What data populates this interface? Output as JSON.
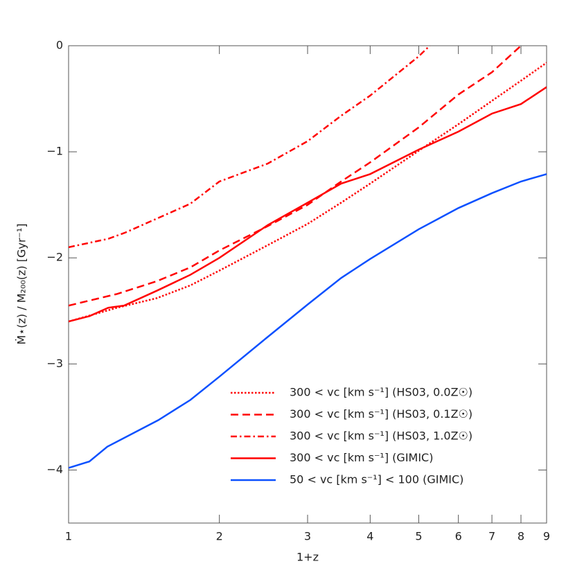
{
  "chart_data": {
    "type": "line",
    "xlabel": "1+z",
    "ylabel": "Ṁ⋆(z) / M₂₀₀(z) [Gyr⁻¹]",
    "xscale": "log",
    "xlim": [
      1,
      9
    ],
    "xticks": [
      1,
      2,
      3,
      4,
      5,
      6,
      7,
      8,
      9
    ],
    "ylim": [
      -4.5,
      0
    ],
    "yticks": [
      {
        "value": -4,
        "label": "−4"
      },
      {
        "value": -3,
        "label": "−3"
      },
      {
        "value": -2,
        "label": "−2"
      },
      {
        "value": -1,
        "label": "−1"
      },
      0
    ],
    "legend": "lower right",
    "series": [
      {
        "name": "300 < vc [km s⁻¹] (HS03, 0.0Z☉)",
        "color": "#ff0000",
        "style": "dotted",
        "x": [
          1,
          1.25,
          1.5,
          1.75,
          2,
          2.5,
          3,
          3.5,
          4,
          5,
          6,
          7,
          8,
          9
        ],
        "values": [
          -2.6,
          -2.47,
          -2.38,
          -2.26,
          -2.12,
          -1.88,
          -1.68,
          -1.48,
          -1.3,
          -0.99,
          -0.74,
          -0.52,
          -0.33,
          -0.16
        ]
      },
      {
        "name": "300 < vc [km s⁻¹] (HS03, 0.1Z☉)",
        "color": "#ff0000",
        "style": "dashed",
        "x": [
          1,
          1.25,
          1.5,
          1.75,
          2,
          2.5,
          3,
          3.5,
          4,
          5,
          6,
          7,
          8
        ],
        "values": [
          -2.45,
          -2.34,
          -2.22,
          -2.09,
          -1.93,
          -1.7,
          -1.5,
          -1.28,
          -1.1,
          -0.77,
          -0.46,
          -0.25,
          0.0
        ]
      },
      {
        "name": "300 < vc [km s⁻¹] (HS03, 1.0Z☉)",
        "color": "#ff0000",
        "style": "dashdot",
        "x": [
          1,
          1.2,
          1.3,
          1.75,
          2,
          2.5,
          3,
          3.5,
          4,
          5,
          5.26
        ],
        "values": [
          -1.9,
          -1.82,
          -1.76,
          -1.49,
          -1.28,
          -1.11,
          -0.9,
          -0.66,
          -0.47,
          -0.1,
          0.0
        ]
      },
      {
        "name": "300 < vc [km s⁻¹] (GIMIC)",
        "color": "#ff0000",
        "style": "solid",
        "x": [
          1,
          1.1,
          1.2,
          1.29,
          1.5,
          1.75,
          2,
          2.5,
          3,
          3.5,
          4,
          5,
          6,
          7,
          8,
          9
        ],
        "values": [
          -2.6,
          -2.55,
          -2.47,
          -2.45,
          -2.31,
          -2.16,
          -2.0,
          -1.69,
          -1.48,
          -1.3,
          -1.21,
          -0.98,
          -0.81,
          -0.64,
          -0.55,
          -0.39
        ]
      },
      {
        "name": "50 < vc [km s⁻¹] < 100 (GIMIC)",
        "color": "#0a50ff",
        "style": "solid",
        "x": [
          1,
          1.1,
          1.195,
          1.51,
          1.75,
          2,
          2.49,
          3,
          3.5,
          4,
          5,
          6,
          7,
          8,
          9
        ],
        "values": [
          -3.98,
          -3.92,
          -3.78,
          -3.53,
          -3.34,
          -3.12,
          -2.75,
          -2.44,
          -2.19,
          -2.01,
          -1.73,
          -1.53,
          -1.39,
          -1.28,
          -1.21
        ]
      }
    ]
  }
}
